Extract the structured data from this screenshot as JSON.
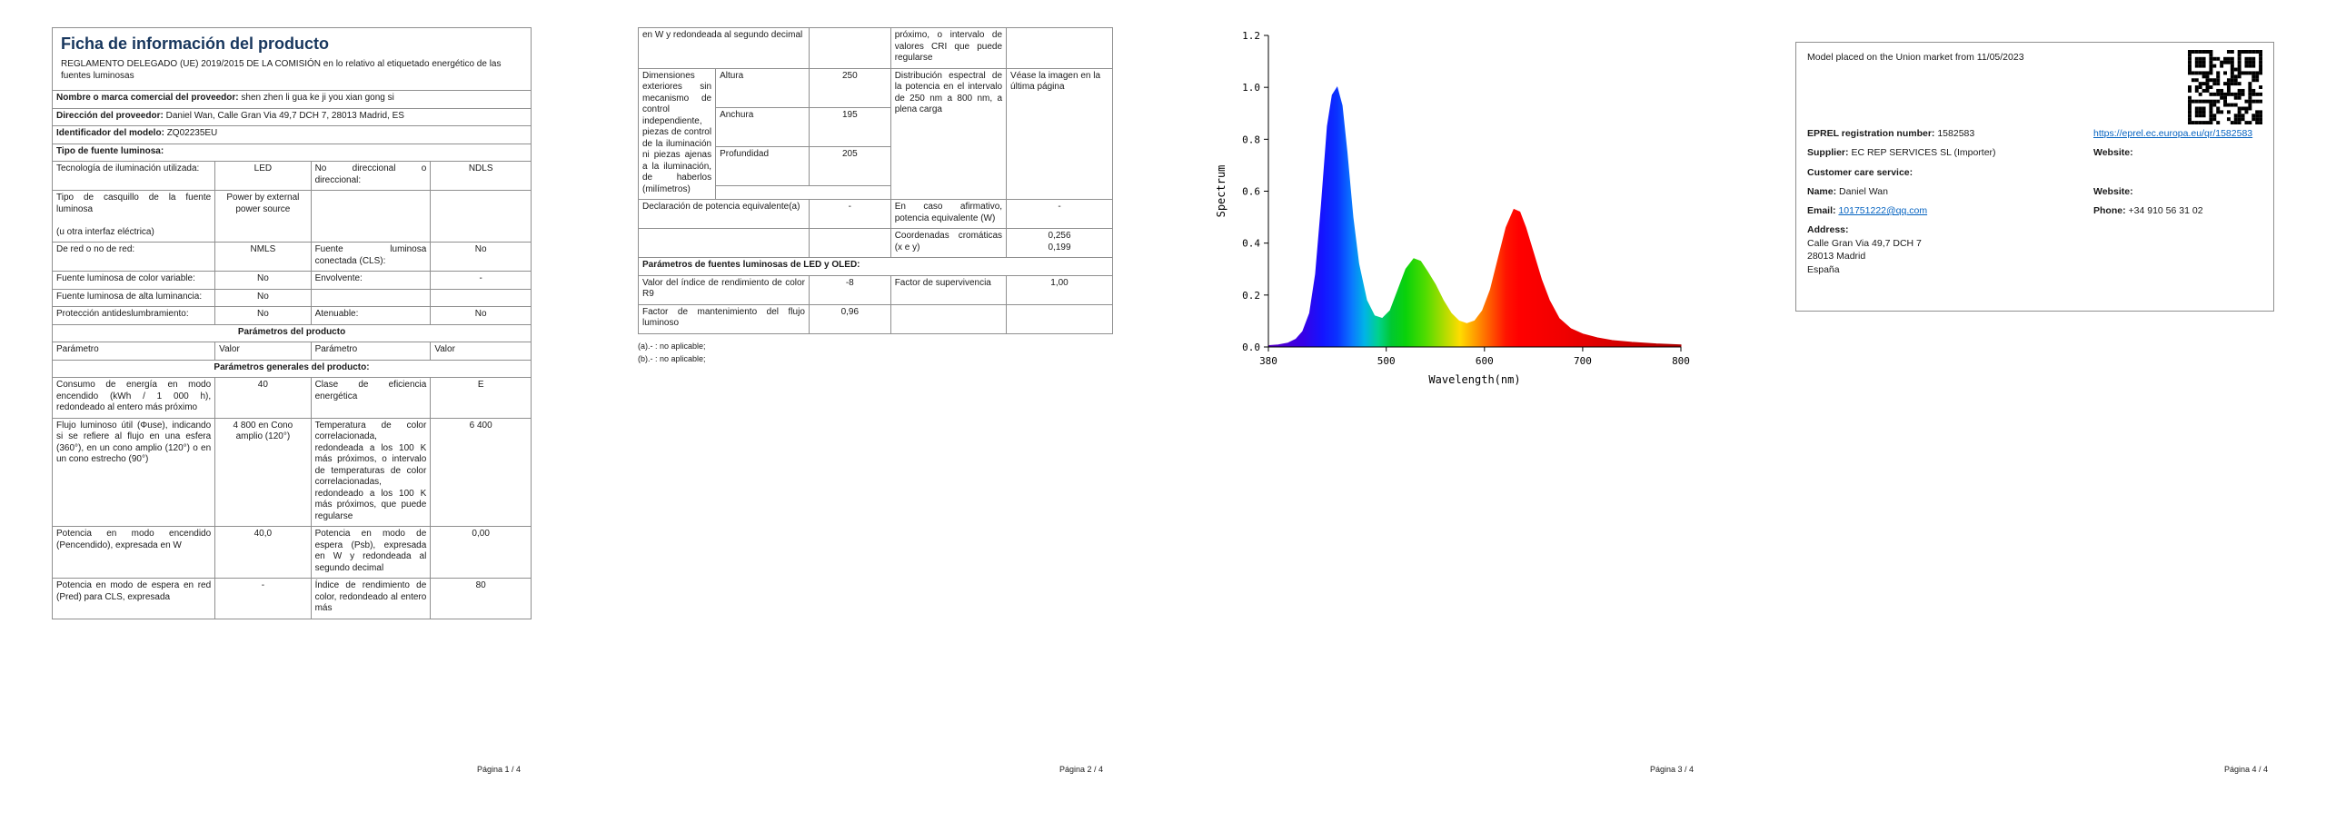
{
  "colors": {
    "title": "#17365d",
    "link": "#0563c1",
    "table_border": "#8f8f8f"
  },
  "page1": {
    "title": "Ficha de información del producto",
    "subtitle": "REGLAMENTO DELEGADO (UE) 2019/2015 DE LA COMISIÓN en lo relativo al etiquetado energético de las fuentes luminosas",
    "supplier_label": "Nombre o marca comercial del proveedor:",
    "supplier_value": "shen zhen li gua ke ji you xian gong si",
    "address_label": "Dirección del proveedor:",
    "address_value": "Daniel Wan, Calle Gran Via 49,7 DCH 7, 28013 Madrid, ES",
    "model_label": "Identificador del modelo:",
    "model_value": "ZQ02235EU",
    "type_header": "Tipo de fuente luminosa:",
    "type_table": [
      [
        "Tecnología de iluminación utilizada:",
        "LED",
        "No direccional o direccional:",
        "NDLS"
      ],
      [
        "Tipo de casquillo de la fuente luminosa\n\n(u otra interfaz eléctrica)",
        "Power by external power source",
        "",
        ""
      ],
      [
        "De red o no de red:",
        "NMLS",
        "Fuente luminosa conectada (CLS):",
        "No"
      ],
      [
        "Fuente luminosa de color variable:",
        "No",
        "Envolvente:",
        "-"
      ],
      [
        "Fuente luminosa de alta luminancia:",
        "No",
        "",
        ""
      ],
      [
        "Protección antideslumbramiento:",
        "No",
        "Atenuable:",
        "No"
      ]
    ],
    "product_params_header": "Parámetros del producto",
    "param_cols": [
      "Parámetro",
      "Valor",
      "Parámetro",
      "Valor"
    ],
    "general_header": "Parámetros generales del producto:",
    "general_rows": [
      [
        "Consumo de energía en modo encendido (kWh / 1 000 h), redondeado al entero más próximo",
        "40",
        "Clase de eficiencia energética",
        "E"
      ],
      [
        "Flujo luminoso útil (Φuse), indicando si se refiere al flujo en una esfera (360°), en un cono amplio (120°) o en un cono estrecho (90°)",
        "4 800 en Cono amplio (120°)",
        "Temperatura de color correlacionada, redondeada a los 100 K más próximos, o intervalo de temperaturas de color correlacionadas, redondeado a los 100 K más próximos, que puede regularse",
        "6 400"
      ],
      [
        "Potencia en modo encendido (Pencendido), expresada en W",
        "40,0",
        "Potencia en modo de espera (Psb), expresada en W y redondeada al segundo decimal",
        "0,00"
      ],
      [
        "Potencia en modo de espera en red (Pred) para CLS, expresada",
        "-",
        "Índice de rendimiento de color, redondeado al entero más",
        "80"
      ]
    ],
    "footer": "Página 1 / 4"
  },
  "page2": {
    "cont_left": "en W y redondeada al segundo decimal",
    "cont_right": "próximo, o intervalo de valores CRI que puede regularse",
    "dims_label": "Dimensiones exteriores sin mecanismo de control independiente, piezas de control de la iluminación ni piezas ajenas a la iluminación, de haberlos (milímetros)",
    "dims_rows": [
      [
        "Altura",
        "250"
      ],
      [
        "Anchura",
        "195"
      ],
      [
        "Profundidad",
        "205"
      ]
    ],
    "spectral_label": "Distribución espectral de la potencia en el intervalo de 250 nm a 800 nm, a plena carga",
    "spectral_value": "Véase la imagen en la última página",
    "equiv_label": "Declaración de potencia equivalente(a)",
    "equiv_value": "-",
    "equiv_right_label": "En caso afirmativo, potencia equivalente (W)",
    "equiv_right_value": "-",
    "chroma_label": "Coordenadas cromáticas (x e y)",
    "chroma_value": "0,256\n0,199",
    "led_header": "Parámetros de fuentes luminosas de LED y OLED:",
    "r9_label": "Valor del índice de rendimiento de color R9",
    "r9_value": "-8",
    "survival_label": "Factor de supervivencia",
    "survival_value": "1,00",
    "flux_label": "Factor de mantenimiento del flujo luminoso",
    "flux_value": "0,96",
    "footnotes": [
      "(a).- : no aplicable;",
      "(b).- : no aplicable;"
    ],
    "footer": "Página 2 / 4"
  },
  "chart_data": {
    "type": "area",
    "title": "",
    "xlabel": "Wavelength(nm)",
    "ylabel": "Spectrum",
    "xlim": [
      380,
      800
    ],
    "ylim": [
      0,
      1.2
    ],
    "x_ticks": [
      380,
      500,
      600,
      700,
      800
    ],
    "y_ticks": [
      0,
      0.2,
      0.4,
      0.6,
      0.8,
      1.0,
      1.2
    ],
    "grid": false,
    "legend": false,
    "description": "Distribución espectral de la potencia a plena carga (relativa); pico azul ~450 nm = 1.0, lomo verde ~528 nm ≈ 0.34, pico rojo ~630 nm ≈ 0.53",
    "x": [
      380,
      390,
      400,
      408,
      415,
      422,
      428,
      434,
      440,
      445,
      450,
      455,
      460,
      466,
      472,
      480,
      488,
      496,
      504,
      512,
      520,
      528,
      535,
      542,
      550,
      558,
      566,
      574,
      582,
      590,
      598,
      606,
      614,
      622,
      630,
      636,
      642,
      650,
      658,
      666,
      676,
      688,
      700,
      715,
      730,
      750,
      775,
      800
    ],
    "y": [
      0.005,
      0.008,
      0.015,
      0.03,
      0.06,
      0.13,
      0.28,
      0.55,
      0.85,
      0.97,
      1.0,
      0.93,
      0.75,
      0.5,
      0.32,
      0.18,
      0.12,
      0.11,
      0.14,
      0.22,
      0.3,
      0.34,
      0.33,
      0.29,
      0.24,
      0.18,
      0.13,
      0.1,
      0.09,
      0.1,
      0.14,
      0.22,
      0.34,
      0.46,
      0.53,
      0.52,
      0.46,
      0.36,
      0.26,
      0.18,
      0.11,
      0.07,
      0.05,
      0.035,
      0.025,
      0.018,
      0.012,
      0.008
    ],
    "gradient_stops": [
      [
        380,
        "#5a00c8"
      ],
      [
        415,
        "#3700e6"
      ],
      [
        435,
        "#1414ff"
      ],
      [
        450,
        "#0a32ff"
      ],
      [
        465,
        "#0a78ff"
      ],
      [
        478,
        "#00b4e6"
      ],
      [
        492,
        "#00d28c"
      ],
      [
        505,
        "#00c832"
      ],
      [
        520,
        "#0ad20a"
      ],
      [
        540,
        "#50dc00"
      ],
      [
        558,
        "#aadc00"
      ],
      [
        575,
        "#ffdc00"
      ],
      [
        592,
        "#ff9600"
      ],
      [
        608,
        "#ff5000"
      ],
      [
        622,
        "#ff1400"
      ],
      [
        635,
        "#ff0000"
      ],
      [
        680,
        "#f00000"
      ],
      [
        740,
        "#d20000"
      ],
      [
        800,
        "#aa0000"
      ]
    ]
  },
  "page3": {
    "footer": "Página 3 / 4"
  },
  "page4": {
    "market_line": "Model placed on the Union market from 11/05/2023",
    "eprel_label": "EPREL registration number:",
    "eprel_value": "1582583",
    "eprel_url": "https://eprel.ec.europa.eu/qr/1582583",
    "supplier_label": "Supplier:",
    "supplier_value": "EC REP SERVICES SL (Importer)",
    "website_label": "Website:",
    "customer_care_label": "Customer care service:",
    "name_label": "Name:",
    "name_value": "Daniel Wan",
    "website2_label": "Website:",
    "email_label": "Email:",
    "email_value": "101751222@qq.com",
    "phone_label": "Phone:",
    "phone_value": "+34 910 56 31 02",
    "address_label": "Address:",
    "address_lines": [
      "Calle Gran Via 49,7 DCH 7",
      "28013 Madrid",
      "España"
    ],
    "footer": "Página 4 / 4"
  }
}
